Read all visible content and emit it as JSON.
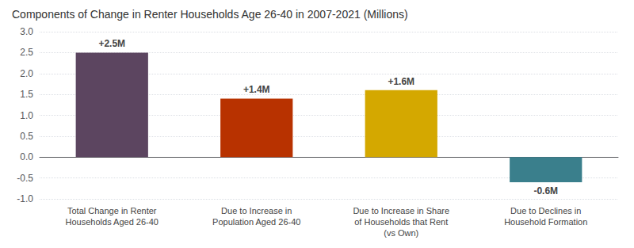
{
  "chart_data": {
    "type": "bar",
    "title": "Components of Change in Renter Households Age 26-40 in 2007-2021 (Millions)",
    "categories": [
      "Total Change in Renter\nHouseholds Aged 26-40",
      "Due to Increase in\nPopulation Aged 26-40",
      "Due to Increase in Share\nof Households that Rent\n(vs Own)",
      "Due to Declines in\nHousehold Formation"
    ],
    "values": [
      2.5,
      1.4,
      1.6,
      -0.6
    ],
    "value_labels": [
      "+2.5M",
      "+1.4M",
      "+1.6M",
      "-0.6M"
    ],
    "colors": [
      "#5c4560",
      "#b83200",
      "#d4a800",
      "#3a7f8c"
    ],
    "ylim": [
      -1.0,
      3.0
    ],
    "yticks": [
      {
        "value": -1.0,
        "label": "-1.0"
      },
      -0.5,
      {
        "value": 0.0,
        "label": "0.0"
      },
      0.5,
      {
        "value": 1.0,
        "label": "1.0"
      },
      1.5,
      {
        "value": 2.0,
        "label": "2.0"
      },
      2.5,
      {
        "value": 3.0,
        "label": "3.0"
      }
    ],
    "grid": true,
    "data_labels": true
  }
}
